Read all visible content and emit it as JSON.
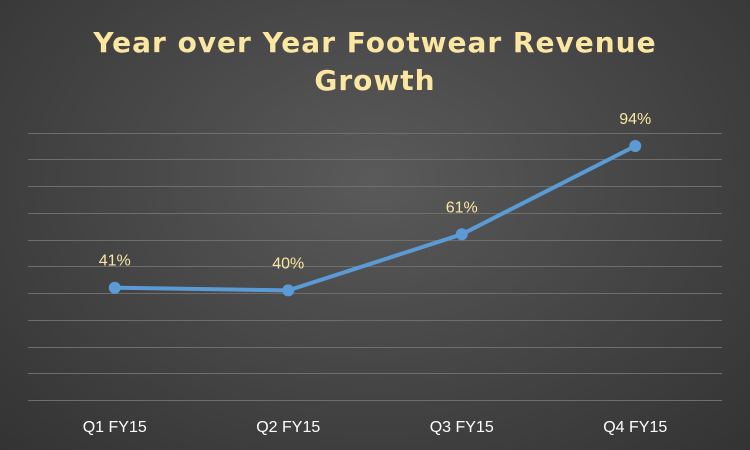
{
  "chart_data": {
    "type": "line",
    "title_lines": [
      "Year over Year Footwear Revenue",
      "Growth"
    ],
    "categories": [
      "Q1 FY15",
      "Q2 FY15",
      "Q3 FY15",
      "Q4 FY15"
    ],
    "series": [
      {
        "values": [
          41,
          40,
          61,
          94
        ],
        "data_labels": [
          "41%",
          "40%",
          "61%",
          "94%"
        ],
        "color": "#5b9bd5"
      }
    ],
    "ylim": [
      -1,
      100
    ],
    "grid_step": 10,
    "grid": true,
    "legend": "none",
    "title_color": "#fbe6a2",
    "label_color": "#fbe6a2",
    "axis_label_color": "#ffffff"
  }
}
